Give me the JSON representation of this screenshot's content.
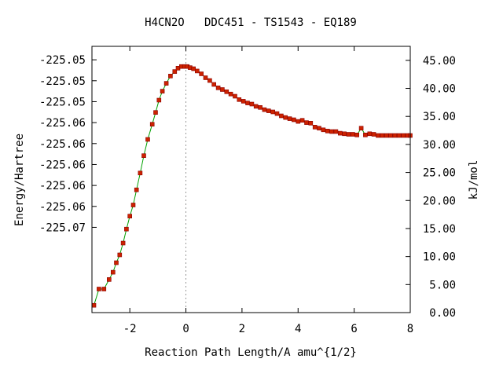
{
  "chart_data": {
    "type": "scatter",
    "title": "H4CN2O   DDC451 - TS1543 - EQ189",
    "xlabel": "Reaction Path Length/A amu^{1/2}",
    "ylabel": "Energy/Hartree",
    "y2label": "kJ/mol",
    "xlim": [
      -3.35,
      8.0
    ],
    "ylim": [
      -225.0705,
      -225.0527
    ],
    "y2lim": [
      0.0,
      47.5
    ],
    "x_ticks": [
      {
        "value": -2,
        "label": "-2"
      },
      {
        "value": 0,
        "label": "0"
      },
      {
        "value": 2,
        "label": "2"
      },
      {
        "value": 4,
        "label": "4"
      },
      {
        "value": 6,
        "label": "6"
      },
      {
        "value": 8,
        "label": "8"
      }
    ],
    "y_ticks": [
      {
        "value": -225.0536,
        "label": "-225.05"
      },
      {
        "value": -225.055,
        "label": "-225.05"
      },
      {
        "value": -225.0564,
        "label": "-225.05"
      },
      {
        "value": -225.0578,
        "label": "-225.06"
      },
      {
        "value": -225.0592,
        "label": "-225.06"
      },
      {
        "value": -225.0606,
        "label": "-225.06"
      },
      {
        "value": -225.062,
        "label": "-225.06"
      },
      {
        "value": -225.0634,
        "label": "-225.06"
      },
      {
        "value": -225.0648,
        "label": "-225.07"
      }
    ],
    "y2_ticks": [
      {
        "value": 0.0,
        "label": "0.00"
      },
      {
        "value": 5.0,
        "label": "5.00"
      },
      {
        "value": 10.0,
        "label": "10.00"
      },
      {
        "value": 15.0,
        "label": "15.00"
      },
      {
        "value": 20.0,
        "label": "20.00"
      },
      {
        "value": 25.0,
        "label": "25.00"
      },
      {
        "value": 30.0,
        "label": "30.00"
      },
      {
        "value": 35.0,
        "label": "35.00"
      },
      {
        "value": 40.0,
        "label": "40.00"
      },
      {
        "value": 45.0,
        "label": "45.00"
      }
    ],
    "ts_marker_x": 0,
    "grid": false,
    "colors": {
      "line": "#00a000",
      "marker": "#cc2200",
      "marker_edge": "#8b0000",
      "ts_line": "#999999"
    },
    "series": [
      {
        "x": [
          -3.28,
          -3.1,
          -2.92,
          -2.74,
          -2.6,
          -2.48,
          -2.36,
          -2.24,
          -2.12,
          -2.0,
          -1.88,
          -1.76,
          -1.63,
          -1.5,
          -1.36,
          -1.2,
          -1.08,
          -0.96,
          -0.84,
          -0.7,
          -0.55,
          -0.4,
          -0.28,
          -0.16,
          -0.05,
          0.05,
          0.15,
          0.27,
          0.4,
          0.55,
          0.7,
          0.85,
          1.0,
          1.15,
          1.3,
          1.45,
          1.6,
          1.75,
          1.9,
          2.05,
          2.2,
          2.35,
          2.5,
          2.65,
          2.8,
          2.95,
          3.1,
          3.25,
          3.4,
          3.55,
          3.7,
          3.85,
          4.0,
          4.15,
          4.3,
          4.45,
          4.6,
          4.75,
          4.9,
          5.05,
          5.2,
          5.35,
          5.5,
          5.65,
          5.8,
          5.95,
          6.1,
          6.25,
          6.4,
          6.55,
          6.7,
          6.85,
          7.0,
          7.15,
          7.3,
          7.45,
          7.6,
          7.75,
          7.9,
          8.0
        ],
        "y": [
          1.3,
          4.2,
          4.2,
          5.9,
          7.2,
          8.9,
          10.3,
          12.4,
          14.9,
          17.2,
          19.2,
          21.9,
          24.9,
          28.0,
          30.9,
          33.6,
          35.7,
          37.9,
          39.5,
          40.9,
          42.2,
          43.0,
          43.6,
          43.9,
          43.9,
          43.9,
          43.7,
          43.5,
          43.1,
          42.6,
          41.9,
          41.4,
          40.7,
          40.1,
          39.8,
          39.4,
          39.0,
          38.6,
          38.0,
          37.7,
          37.4,
          37.2,
          36.8,
          36.6,
          36.2,
          36.0,
          35.8,
          35.5,
          35.1,
          34.8,
          34.6,
          34.4,
          34.1,
          34.3,
          33.9,
          33.8,
          33.1,
          32.9,
          32.6,
          32.4,
          32.3,
          32.3,
          32.0,
          31.9,
          31.8,
          31.8,
          31.7,
          32.9,
          31.7,
          31.9,
          31.8,
          31.6,
          31.6,
          31.6,
          31.6,
          31.6,
          31.6,
          31.6,
          31.6,
          31.6
        ]
      }
    ]
  }
}
